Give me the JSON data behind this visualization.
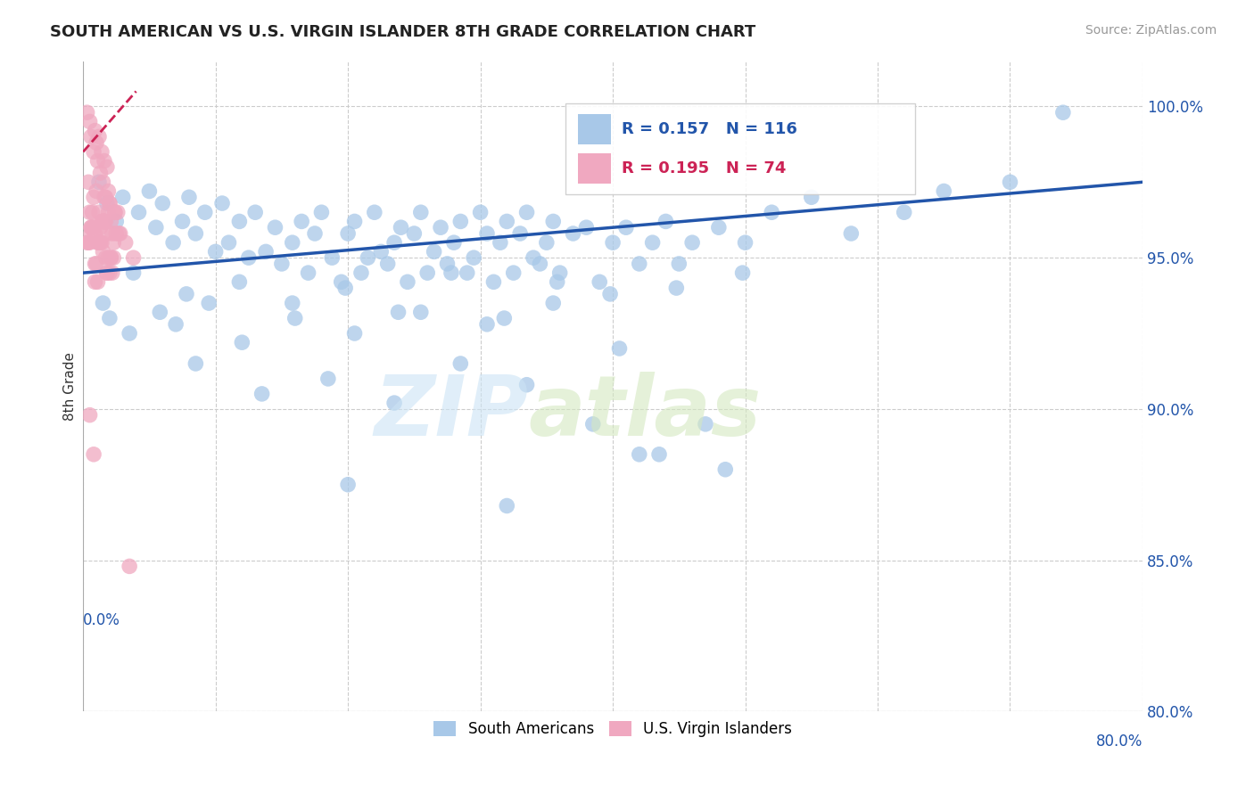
{
  "title": "SOUTH AMERICAN VS U.S. VIRGIN ISLANDER 8TH GRADE CORRELATION CHART",
  "source": "Source: ZipAtlas.com",
  "xlim": [
    0.0,
    80.0
  ],
  "ylim": [
    80.0,
    101.5
  ],
  "blue_R": 0.157,
  "blue_N": 116,
  "pink_R": 0.195,
  "pink_N": 74,
  "blue_color": "#a8c8e8",
  "pink_color": "#f0a8c0",
  "blue_line_color": "#2255aa",
  "pink_line_color": "#cc2255",
  "ylabel_left": "8th Grade",
  "legend_labels": [
    "South Americans",
    "U.S. Virgin Islanders"
  ],
  "blue_trend_x0": 0.0,
  "blue_trend_y0": 94.5,
  "blue_trend_x1": 80.0,
  "blue_trend_y1": 97.5,
  "pink_trend_x0": 0.0,
  "pink_trend_y0": 98.5,
  "pink_trend_x1": 4.0,
  "pink_trend_y1": 100.5,
  "blue_scatter_x": [
    1.2,
    1.8,
    2.5,
    3.0,
    4.2,
    5.0,
    5.5,
    6.0,
    6.8,
    7.5,
    8.0,
    8.5,
    9.2,
    10.0,
    10.5,
    11.0,
    11.8,
    12.5,
    13.0,
    13.8,
    14.5,
    15.0,
    15.8,
    16.5,
    17.0,
    17.5,
    18.0,
    18.8,
    19.5,
    20.0,
    20.5,
    21.0,
    21.5,
    22.0,
    22.5,
    23.0,
    23.5,
    24.0,
    24.5,
    25.0,
    25.5,
    26.0,
    26.5,
    27.0,
    27.5,
    28.0,
    28.5,
    29.0,
    29.5,
    30.0,
    30.5,
    31.0,
    31.5,
    32.0,
    32.5,
    33.0,
    33.5,
    34.0,
    34.5,
    35.0,
    35.5,
    36.0,
    37.0,
    38.0,
    39.0,
    40.0,
    41.0,
    42.0,
    43.0,
    44.0,
    45.0,
    46.0,
    48.0,
    50.0,
    52.0,
    55.0,
    58.0,
    62.0,
    65.0,
    70.0,
    74.0,
    1.5,
    2.0,
    3.5,
    5.8,
    7.0,
    9.5,
    12.0,
    16.0,
    20.5,
    25.5,
    30.5,
    35.5,
    40.5,
    8.5,
    13.5,
    18.5,
    23.5,
    28.5,
    33.5,
    38.5,
    43.5,
    48.5,
    3.8,
    7.8,
    11.8,
    15.8,
    19.8,
    23.8,
    27.8,
    31.8,
    35.8,
    39.8,
    44.8,
    49.8,
    20.0,
    32.0,
    42.0,
    47.0
  ],
  "blue_scatter_y": [
    97.5,
    96.8,
    96.2,
    97.0,
    96.5,
    97.2,
    96.0,
    96.8,
    95.5,
    96.2,
    97.0,
    95.8,
    96.5,
    95.2,
    96.8,
    95.5,
    96.2,
    95.0,
    96.5,
    95.2,
    96.0,
    94.8,
    95.5,
    96.2,
    94.5,
    95.8,
    96.5,
    95.0,
    94.2,
    95.8,
    96.2,
    94.5,
    95.0,
    96.5,
    95.2,
    94.8,
    95.5,
    96.0,
    94.2,
    95.8,
    96.5,
    94.5,
    95.2,
    96.0,
    94.8,
    95.5,
    96.2,
    94.5,
    95.0,
    96.5,
    95.8,
    94.2,
    95.5,
    96.2,
    94.5,
    95.8,
    96.5,
    95.0,
    94.8,
    95.5,
    96.2,
    94.5,
    95.8,
    96.0,
    94.2,
    95.5,
    96.0,
    94.8,
    95.5,
    96.2,
    94.8,
    95.5,
    96.0,
    95.5,
    96.5,
    97.0,
    95.8,
    96.5,
    97.2,
    97.5,
    99.8,
    93.5,
    93.0,
    92.5,
    93.2,
    92.8,
    93.5,
    92.2,
    93.0,
    92.5,
    93.2,
    92.8,
    93.5,
    92.0,
    91.5,
    90.5,
    91.0,
    90.2,
    91.5,
    90.8,
    89.5,
    88.5,
    88.0,
    94.5,
    93.8,
    94.2,
    93.5,
    94.0,
    93.2,
    94.5,
    93.0,
    94.2,
    93.8,
    94.0,
    94.5,
    87.5,
    86.8,
    88.5,
    89.5
  ],
  "pink_scatter_x": [
    0.3,
    0.5,
    0.6,
    0.8,
    0.9,
    1.0,
    1.1,
    1.2,
    1.3,
    1.4,
    1.5,
    1.6,
    1.7,
    1.8,
    1.9,
    2.0,
    0.4,
    0.7,
    1.0,
    1.3,
    1.6,
    1.9,
    2.2,
    0.5,
    0.8,
    1.1,
    1.4,
    1.7,
    2.0,
    2.3,
    0.6,
    0.9,
    1.2,
    1.5,
    1.8,
    2.1,
    0.4,
    0.7,
    1.0,
    1.3,
    1.6,
    1.9,
    2.2,
    2.5,
    0.5,
    0.8,
    1.1,
    1.4,
    1.7,
    2.0,
    2.3,
    2.6,
    0.6,
    0.9,
    1.2,
    1.5,
    1.8,
    2.1,
    2.4,
    2.8,
    0.3,
    0.6,
    0.9,
    1.2,
    1.5,
    1.8,
    2.1,
    2.4,
    2.7,
    3.2,
    3.8,
    0.5,
    0.8,
    3.5
  ],
  "pink_scatter_y": [
    99.8,
    99.5,
    99.0,
    98.5,
    99.2,
    98.8,
    98.2,
    99.0,
    97.8,
    98.5,
    97.5,
    98.2,
    97.0,
    98.0,
    97.2,
    96.8,
    97.5,
    96.5,
    97.2,
    96.0,
    97.0,
    96.5,
    95.8,
    96.5,
    97.0,
    95.5,
    96.2,
    95.0,
    96.8,
    95.5,
    96.0,
    95.8,
    96.5,
    95.2,
    95.8,
    96.2,
    95.5,
    96.0,
    94.8,
    95.5,
    96.2,
    95.0,
    94.5,
    95.8,
    95.5,
    96.0,
    94.2,
    95.5,
    96.2,
    94.5,
    95.0,
    96.5,
    95.8,
    94.2,
    95.5,
    96.2,
    94.5,
    95.0,
    96.5,
    95.8,
    95.5,
    96.0,
    94.8,
    95.5,
    96.2,
    94.5,
    95.0,
    96.5,
    95.8,
    95.5,
    95.0,
    89.8,
    88.5,
    84.8
  ]
}
